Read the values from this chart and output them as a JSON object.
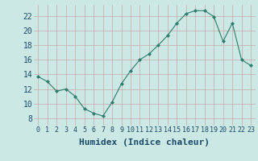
{
  "x": [
    0,
    1,
    2,
    3,
    4,
    5,
    6,
    7,
    8,
    9,
    10,
    11,
    12,
    13,
    14,
    15,
    16,
    17,
    18,
    19,
    20,
    21,
    22,
    23
  ],
  "y": [
    13.7,
    13.0,
    11.7,
    12.0,
    11.0,
    9.3,
    8.7,
    8.3,
    10.2,
    12.7,
    14.5,
    16.0,
    16.8,
    18.0,
    19.3,
    21.0,
    22.3,
    22.7,
    22.7,
    21.9,
    18.5,
    21.0,
    16.0,
    15.2
  ],
  "line_color": "#2e7d6e",
  "marker": "D",
  "marker_size": 2,
  "bg_color": "#cce8e4",
  "grid_color": "#c8a8a8",
  "xlabel": "Humidex (Indice chaleur)",
  "xlabel_color": "#1a4a6a",
  "xlabel_fontsize": 8,
  "tick_color": "#1a4a6a",
  "ytick_fontsize": 7,
  "xtick_fontsize": 6,
  "ylim": [
    7,
    23.5
  ],
  "xlim": [
    -0.5,
    23.5
  ],
  "yticks": [
    8,
    10,
    12,
    14,
    16,
    18,
    20,
    22
  ],
  "xticks": [
    0,
    1,
    2,
    3,
    4,
    5,
    6,
    7,
    8,
    9,
    10,
    11,
    12,
    13,
    14,
    15,
    16,
    17,
    18,
    19,
    20,
    21,
    22,
    23
  ]
}
